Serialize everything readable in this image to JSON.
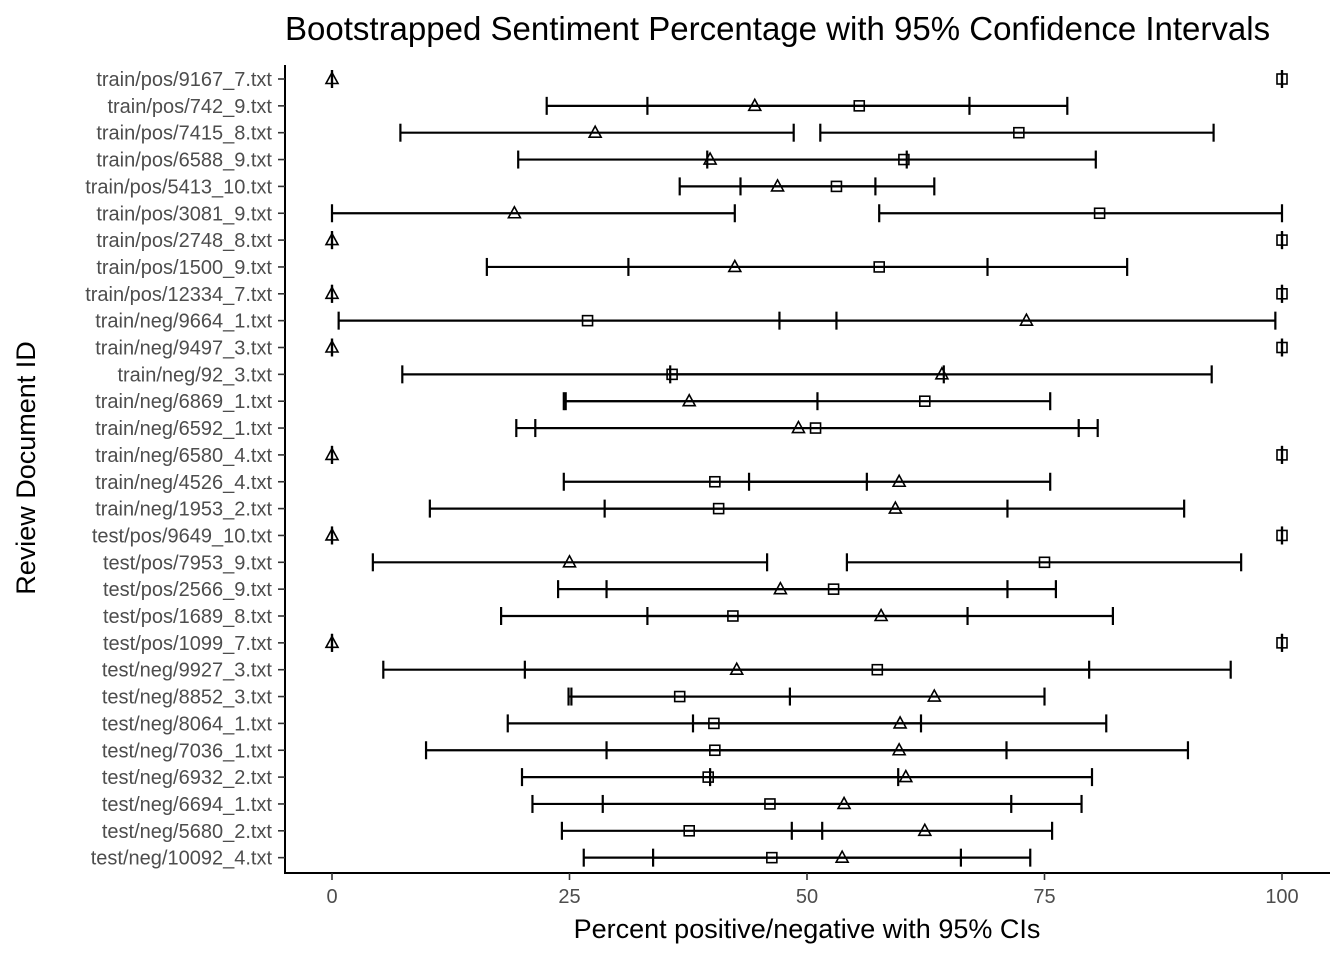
{
  "chart_data": {
    "type": "scatter",
    "title": "Bootstrapped Sentiment Percentage with 95% Confidence Intervals",
    "xlabel": "Percent positive/negative with 95% CIs",
    "ylabel": "Review Document ID",
    "xlim": [
      0,
      100
    ],
    "x_ticks": [
      "0",
      "25",
      "50",
      "75",
      "100"
    ],
    "grid": false,
    "legend": "none",
    "colors": {
      "marks": "#000000",
      "tick_text": "#4d4d4d"
    },
    "categories": [
      "train/pos/9167_7.txt",
      "train/pos/742_9.txt",
      "train/pos/7415_8.txt",
      "train/pos/6588_9.txt",
      "train/pos/5413_10.txt",
      "train/pos/3081_9.txt",
      "train/pos/2748_8.txt",
      "train/pos/1500_9.txt",
      "train/pos/12334_7.txt",
      "train/neg/9664_1.txt",
      "train/neg/9497_3.txt",
      "train/neg/92_3.txt",
      "train/neg/6869_1.txt",
      "train/neg/6592_1.txt",
      "train/neg/6580_4.txt",
      "train/neg/4526_4.txt",
      "train/neg/1953_2.txt",
      "test/pos/9649_10.txt",
      "test/pos/7953_9.txt",
      "test/pos/2566_9.txt",
      "test/pos/1689_8.txt",
      "test/pos/1099_7.txt",
      "test/neg/9927_3.txt",
      "test/neg/8852_3.txt",
      "test/neg/8064_1.txt",
      "test/neg/7036_1.txt",
      "test/neg/6932_2.txt",
      "test/neg/6694_1.txt",
      "test/neg/5680_2.txt",
      "test/neg/10092_4.txt"
    ],
    "series": [
      {
        "shape": "triangle",
        "values": [
          0,
          44.5,
          27.7,
          39.8,
          46.9,
          19.2,
          0,
          42.4,
          0,
          73.1,
          0,
          64.2,
          37.6,
          49.1,
          0,
          59.7,
          59.3,
          0,
          25.0,
          47.2,
          57.8,
          0,
          42.6,
          63.4,
          59.8,
          59.7,
          60.4,
          53.9,
          62.4,
          53.7
        ],
        "ci_low": [
          0,
          22.6,
          7.2,
          19.6,
          36.6,
          0,
          0,
          16.3,
          0,
          47.1,
          0,
          35.6,
          24.6,
          21.4,
          0,
          43.9,
          28.7,
          0,
          4.3,
          23.8,
          33.2,
          0,
          5.4,
          25.2,
          38.0,
          28.9,
          39.8,
          28.5,
          48.4,
          26.5
        ],
        "ci_high": [
          0,
          67.1,
          48.6,
          60.5,
          63.4,
          42.4,
          0,
          83.7,
          0,
          99.3,
          0,
          92.6,
          75.6,
          78.6,
          0,
          75.6,
          89.7,
          0,
          45.8,
          76.2,
          82.2,
          0,
          79.7,
          75.0,
          81.5,
          71.0,
          80.0,
          78.9,
          75.8,
          73.5
        ]
      },
      {
        "shape": "square",
        "values": [
          100,
          55.5,
          72.3,
          60.2,
          53.1,
          80.8,
          100,
          57.6,
          100,
          26.9,
          100,
          35.8,
          62.4,
          50.9,
          100,
          40.3,
          40.7,
          100,
          75.0,
          52.8,
          42.2,
          100,
          57.4,
          36.6,
          40.2,
          40.3,
          39.6,
          46.1,
          37.6,
          46.3
        ],
        "ci_low": [
          100,
          33.2,
          51.4,
          39.5,
          43.0,
          57.6,
          100,
          31.2,
          100,
          0.7,
          100,
          7.4,
          24.4,
          19.4,
          100,
          24.4,
          10.3,
          100,
          54.2,
          28.9,
          17.8,
          100,
          20.3,
          24.9,
          18.5,
          9.9,
          20.0,
          21.1,
          24.2,
          33.8
        ],
        "ci_high": [
          100,
          77.4,
          92.8,
          80.4,
          57.2,
          100,
          100,
          69.0,
          100,
          53.1,
          100,
          64.4,
          51.1,
          80.6,
          100,
          56.3,
          71.1,
          100,
          95.7,
          71.1,
          66.9,
          100,
          94.6,
          48.2,
          62.0,
          90.1,
          59.6,
          71.5,
          51.6,
          66.2
        ]
      }
    ]
  }
}
